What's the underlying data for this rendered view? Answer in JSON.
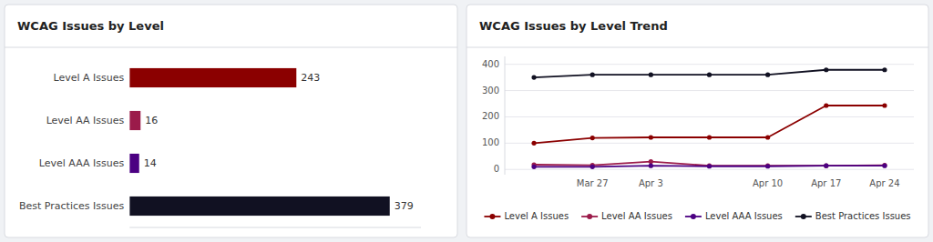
{
  "chart_data": [
    {
      "type": "bar",
      "orientation": "horizontal",
      "title": "WCAG Issues by Level",
      "categories": [
        "Level A Issues",
        "Level AA Issues",
        "Level AAA Issues",
        "Best Practices Issues"
      ],
      "values": [
        243,
        16,
        14,
        379
      ],
      "colors": [
        "#8B0000",
        "#9B1B4A",
        "#4B0082",
        "#111122"
      ],
      "xlim": [
        0,
        424.48
      ],
      "data_labels": true,
      "tick_labels": "y"
    },
    {
      "type": "line",
      "title": "WCAG Issues by Level Trend",
      "categories": [
        null,
        "Mar 27",
        "Apr 3",
        null,
        "Apr 10",
        "Apr 17",
        "Apr 24"
      ],
      "series": [
        {
          "name": "Level A Issues",
          "color": "#8B0000",
          "marker": "circle",
          "values": [
            100,
            120,
            122,
            122,
            122,
            243,
            243
          ]
        },
        {
          "name": "Level AA Issues",
          "color": "#9B1B4A",
          "marker": "circle",
          "values": [
            18,
            16,
            30,
            14,
            14,
            14,
            16
          ]
        },
        {
          "name": "Level AAA Issues",
          "color": "#4B0082",
          "marker": "circle",
          "values": [
            10,
            10,
            14,
            12,
            12,
            14,
            14
          ]
        },
        {
          "name": "Best Practices Issues",
          "color": "#111122",
          "marker": "circle",
          "values": [
            350,
            360,
            360,
            360,
            360,
            379,
            379
          ]
        }
      ],
      "ylim": [
        -20,
        430
      ],
      "yticks": [
        0,
        100,
        200,
        300,
        400
      ],
      "grid": true,
      "legend": "bottom"
    }
  ]
}
